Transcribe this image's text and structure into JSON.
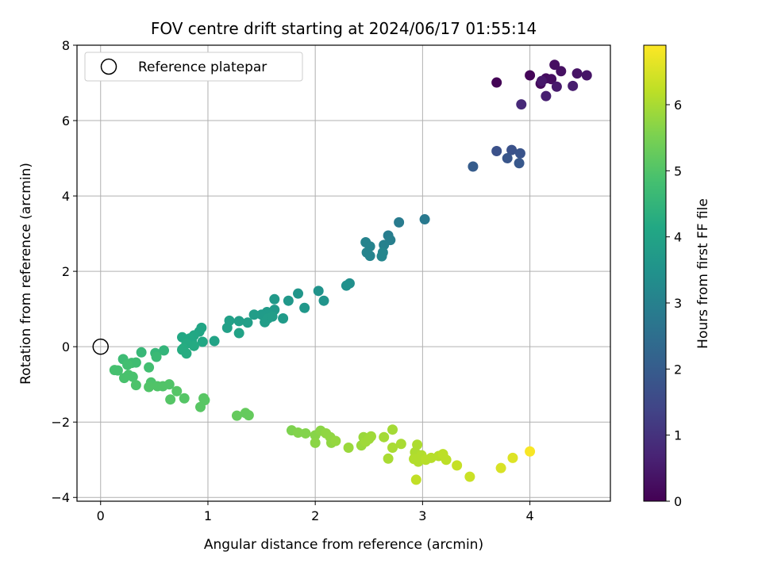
{
  "chart_data": {
    "type": "scatter",
    "title": "FOV centre drift starting at 2024/06/17 01:55:14",
    "xlabel": "Angular distance from reference (arcmin)",
    "ylabel": "Rotation from reference (arcmin)",
    "xlim": [
      -0.22,
      4.75
    ],
    "ylim": [
      -4.1,
      8.0
    ],
    "xticks": [
      0,
      1,
      2,
      3,
      4
    ],
    "yticks": [
      -4,
      -2,
      0,
      2,
      4,
      6,
      8
    ],
    "grid": true,
    "legend": {
      "position": "upper-left",
      "entries": [
        "Reference platepar"
      ]
    },
    "reference_point": {
      "x": 0,
      "y": 0
    },
    "colorbar": {
      "label": "Hours from first FF file",
      "range": [
        0,
        6.9
      ],
      "ticks": [
        0,
        1,
        2,
        3,
        4,
        5,
        6
      ],
      "colormap": "viridis"
    },
    "points": [
      {
        "x": 3.69,
        "y": 7.01,
        "t": 0.05
      },
      {
        "x": 4.0,
        "y": 7.2,
        "t": 0.1
      },
      {
        "x": 4.1,
        "y": 6.98,
        "t": 0.15
      },
      {
        "x": 4.15,
        "y": 7.12,
        "t": 0.2
      },
      {
        "x": 4.2,
        "y": 7.1,
        "t": 0.25
      },
      {
        "x": 4.23,
        "y": 7.48,
        "t": 0.28
      },
      {
        "x": 4.29,
        "y": 7.31,
        "t": 0.3
      },
      {
        "x": 4.44,
        "y": 7.25,
        "t": 0.35
      },
      {
        "x": 4.53,
        "y": 7.2,
        "t": 0.4
      },
      {
        "x": 4.11,
        "y": 7.05,
        "t": 0.45
      },
      {
        "x": 4.25,
        "y": 6.9,
        "t": 0.5
      },
      {
        "x": 4.4,
        "y": 6.92,
        "t": 0.55
      },
      {
        "x": 4.15,
        "y": 6.65,
        "t": 0.6
      },
      {
        "x": 3.92,
        "y": 6.43,
        "t": 0.8
      },
      {
        "x": 3.69,
        "y": 5.19,
        "t": 1.7
      },
      {
        "x": 3.83,
        "y": 5.22,
        "t": 1.75
      },
      {
        "x": 3.91,
        "y": 5.13,
        "t": 1.8
      },
      {
        "x": 3.79,
        "y": 5.0,
        "t": 1.85
      },
      {
        "x": 3.9,
        "y": 4.87,
        "t": 1.9
      },
      {
        "x": 3.47,
        "y": 4.78,
        "t": 2.0
      },
      {
        "x": 3.02,
        "y": 3.38,
        "t": 2.8
      },
      {
        "x": 2.78,
        "y": 3.3,
        "t": 2.85
      },
      {
        "x": 2.68,
        "y": 2.95,
        "t": 2.9
      },
      {
        "x": 2.7,
        "y": 2.83,
        "t": 2.95
      },
      {
        "x": 2.64,
        "y": 2.7,
        "t": 3.0
      },
      {
        "x": 2.47,
        "y": 2.77,
        "t": 3.05
      },
      {
        "x": 2.51,
        "y": 2.66,
        "t": 3.05
      },
      {
        "x": 2.48,
        "y": 2.5,
        "t": 3.1
      },
      {
        "x": 2.51,
        "y": 2.41,
        "t": 3.1
      },
      {
        "x": 2.62,
        "y": 2.4,
        "t": 3.15
      },
      {
        "x": 2.63,
        "y": 2.5,
        "t": 3.15
      },
      {
        "x": 2.32,
        "y": 1.68,
        "t": 3.4
      },
      {
        "x": 2.29,
        "y": 1.62,
        "t": 3.45
      },
      {
        "x": 2.03,
        "y": 1.48,
        "t": 3.5
      },
      {
        "x": 2.08,
        "y": 1.22,
        "t": 3.55
      },
      {
        "x": 1.84,
        "y": 1.41,
        "t": 3.6
      },
      {
        "x": 1.75,
        "y": 1.22,
        "t": 3.65
      },
      {
        "x": 1.9,
        "y": 1.03,
        "t": 3.65
      },
      {
        "x": 1.62,
        "y": 1.26,
        "t": 3.7
      },
      {
        "x": 1.62,
        "y": 0.98,
        "t": 3.7
      },
      {
        "x": 1.55,
        "y": 0.92,
        "t": 3.75
      },
      {
        "x": 1.5,
        "y": 0.85,
        "t": 3.75
      },
      {
        "x": 1.7,
        "y": 0.75,
        "t": 3.75
      },
      {
        "x": 1.43,
        "y": 0.85,
        "t": 3.8
      },
      {
        "x": 1.56,
        "y": 0.75,
        "t": 3.8
      },
      {
        "x": 1.53,
        "y": 0.65,
        "t": 3.8
      },
      {
        "x": 1.6,
        "y": 0.8,
        "t": 3.8
      },
      {
        "x": 1.37,
        "y": 0.64,
        "t": 3.85
      },
      {
        "x": 1.29,
        "y": 0.68,
        "t": 3.85
      },
      {
        "x": 1.2,
        "y": 0.69,
        "t": 3.9
      },
      {
        "x": 1.18,
        "y": 0.5,
        "t": 3.9
      },
      {
        "x": 1.29,
        "y": 0.36,
        "t": 3.95
      },
      {
        "x": 1.06,
        "y": 0.15,
        "t": 4.0
      },
      {
        "x": 0.94,
        "y": 0.5,
        "t": 4.05
      },
      {
        "x": 0.92,
        "y": 0.4,
        "t": 4.05
      },
      {
        "x": 0.95,
        "y": 0.13,
        "t": 4.1
      },
      {
        "x": 0.87,
        "y": 0.3,
        "t": 4.1
      },
      {
        "x": 0.76,
        "y": 0.25,
        "t": 4.15
      },
      {
        "x": 0.85,
        "y": 0.15,
        "t": 4.15
      },
      {
        "x": 0.83,
        "y": 0.22,
        "t": 4.15
      },
      {
        "x": 0.87,
        "y": 0.02,
        "t": 4.2
      },
      {
        "x": 0.8,
        "y": 0.08,
        "t": 4.2
      },
      {
        "x": 0.77,
        "y": -0.05,
        "t": 4.25
      },
      {
        "x": 0.8,
        "y": -0.18,
        "t": 4.25
      },
      {
        "x": 0.76,
        "y": -0.08,
        "t": 4.25
      },
      {
        "x": 0.59,
        "y": -0.1,
        "t": 4.5
      },
      {
        "x": 0.51,
        "y": -0.17,
        "t": 4.55
      },
      {
        "x": 0.38,
        "y": -0.15,
        "t": 4.6
      },
      {
        "x": 0.52,
        "y": -0.27,
        "t": 4.65
      },
      {
        "x": 0.21,
        "y": -0.33,
        "t": 4.7
      },
      {
        "x": 0.29,
        "y": -0.43,
        "t": 4.75
      },
      {
        "x": 0.33,
        "y": -0.42,
        "t": 4.75
      },
      {
        "x": 0.25,
        "y": -0.48,
        "t": 4.8
      },
      {
        "x": 0.45,
        "y": -0.55,
        "t": 4.8
      },
      {
        "x": 0.16,
        "y": -0.63,
        "t": 4.85
      },
      {
        "x": 0.13,
        "y": -0.62,
        "t": 4.85
      },
      {
        "x": 0.26,
        "y": -0.75,
        "t": 4.9
      },
      {
        "x": 0.22,
        "y": -0.83,
        "t": 4.9
      },
      {
        "x": 0.3,
        "y": -0.8,
        "t": 4.9
      },
      {
        "x": 0.33,
        "y": -1.02,
        "t": 4.95
      },
      {
        "x": 0.47,
        "y": -0.95,
        "t": 4.95
      },
      {
        "x": 0.45,
        "y": -1.07,
        "t": 5.0
      },
      {
        "x": 0.53,
        "y": -1.05,
        "t": 5.0
      },
      {
        "x": 0.58,
        "y": -1.05,
        "t": 5.0
      },
      {
        "x": 0.64,
        "y": -1.0,
        "t": 5.0
      },
      {
        "x": 0.71,
        "y": -1.18,
        "t": 5.05
      },
      {
        "x": 0.78,
        "y": -1.37,
        "t": 5.05
      },
      {
        "x": 0.65,
        "y": -1.4,
        "t": 5.05
      },
      {
        "x": 0.96,
        "y": -1.37,
        "t": 5.1
      },
      {
        "x": 0.97,
        "y": -1.42,
        "t": 5.1
      },
      {
        "x": 0.93,
        "y": -1.6,
        "t": 5.1
      },
      {
        "x": 1.27,
        "y": -1.83,
        "t": 5.25
      },
      {
        "x": 1.35,
        "y": -1.76,
        "t": 5.25
      },
      {
        "x": 1.38,
        "y": -1.82,
        "t": 5.25
      },
      {
        "x": 1.78,
        "y": -2.22,
        "t": 5.55
      },
      {
        "x": 1.84,
        "y": -2.28,
        "t": 5.6
      },
      {
        "x": 1.91,
        "y": -2.3,
        "t": 5.6
      },
      {
        "x": 2.0,
        "y": -2.35,
        "t": 5.65
      },
      {
        "x": 2.05,
        "y": -2.23,
        "t": 5.7
      },
      {
        "x": 2.0,
        "y": -2.55,
        "t": 5.7
      },
      {
        "x": 2.1,
        "y": -2.3,
        "t": 5.75
      },
      {
        "x": 2.14,
        "y": -2.4,
        "t": 5.75
      },
      {
        "x": 2.15,
        "y": -2.55,
        "t": 5.75
      },
      {
        "x": 2.19,
        "y": -2.5,
        "t": 5.8
      },
      {
        "x": 2.31,
        "y": -2.68,
        "t": 5.85
      },
      {
        "x": 2.43,
        "y": -2.62,
        "t": 5.85
      },
      {
        "x": 2.45,
        "y": -2.4,
        "t": 5.85
      },
      {
        "x": 2.52,
        "y": -2.38,
        "t": 5.9
      },
      {
        "x": 2.47,
        "y": -2.52,
        "t": 5.9
      },
      {
        "x": 2.5,
        "y": -2.45,
        "t": 5.9
      },
      {
        "x": 2.64,
        "y": -2.4,
        "t": 5.95
      },
      {
        "x": 2.72,
        "y": -2.2,
        "t": 5.95
      },
      {
        "x": 2.72,
        "y": -2.68,
        "t": 6.0
      },
      {
        "x": 2.8,
        "y": -2.58,
        "t": 6.0
      },
      {
        "x": 2.68,
        "y": -2.97,
        "t": 6.0
      },
      {
        "x": 2.95,
        "y": -2.6,
        "t": 6.05
      },
      {
        "x": 2.93,
        "y": -2.8,
        "t": 6.05
      },
      {
        "x": 2.92,
        "y": -2.98,
        "t": 6.1
      },
      {
        "x": 2.96,
        "y": -3.05,
        "t": 6.1
      },
      {
        "x": 2.99,
        "y": -2.88,
        "t": 6.1
      },
      {
        "x": 3.03,
        "y": -3.0,
        "t": 6.15
      },
      {
        "x": 3.08,
        "y": -2.95,
        "t": 6.15
      },
      {
        "x": 3.15,
        "y": -2.9,
        "t": 6.15
      },
      {
        "x": 3.19,
        "y": -2.85,
        "t": 6.2
      },
      {
        "x": 3.22,
        "y": -3.0,
        "t": 6.2
      },
      {
        "x": 2.94,
        "y": -3.53,
        "t": 6.25
      },
      {
        "x": 3.32,
        "y": -3.15,
        "t": 6.3
      },
      {
        "x": 3.44,
        "y": -3.45,
        "t": 6.35
      },
      {
        "x": 3.73,
        "y": -3.22,
        "t": 6.5
      },
      {
        "x": 3.84,
        "y": -2.95,
        "t": 6.55
      },
      {
        "x": 4.0,
        "y": -2.78,
        "t": 6.85
      }
    ]
  }
}
